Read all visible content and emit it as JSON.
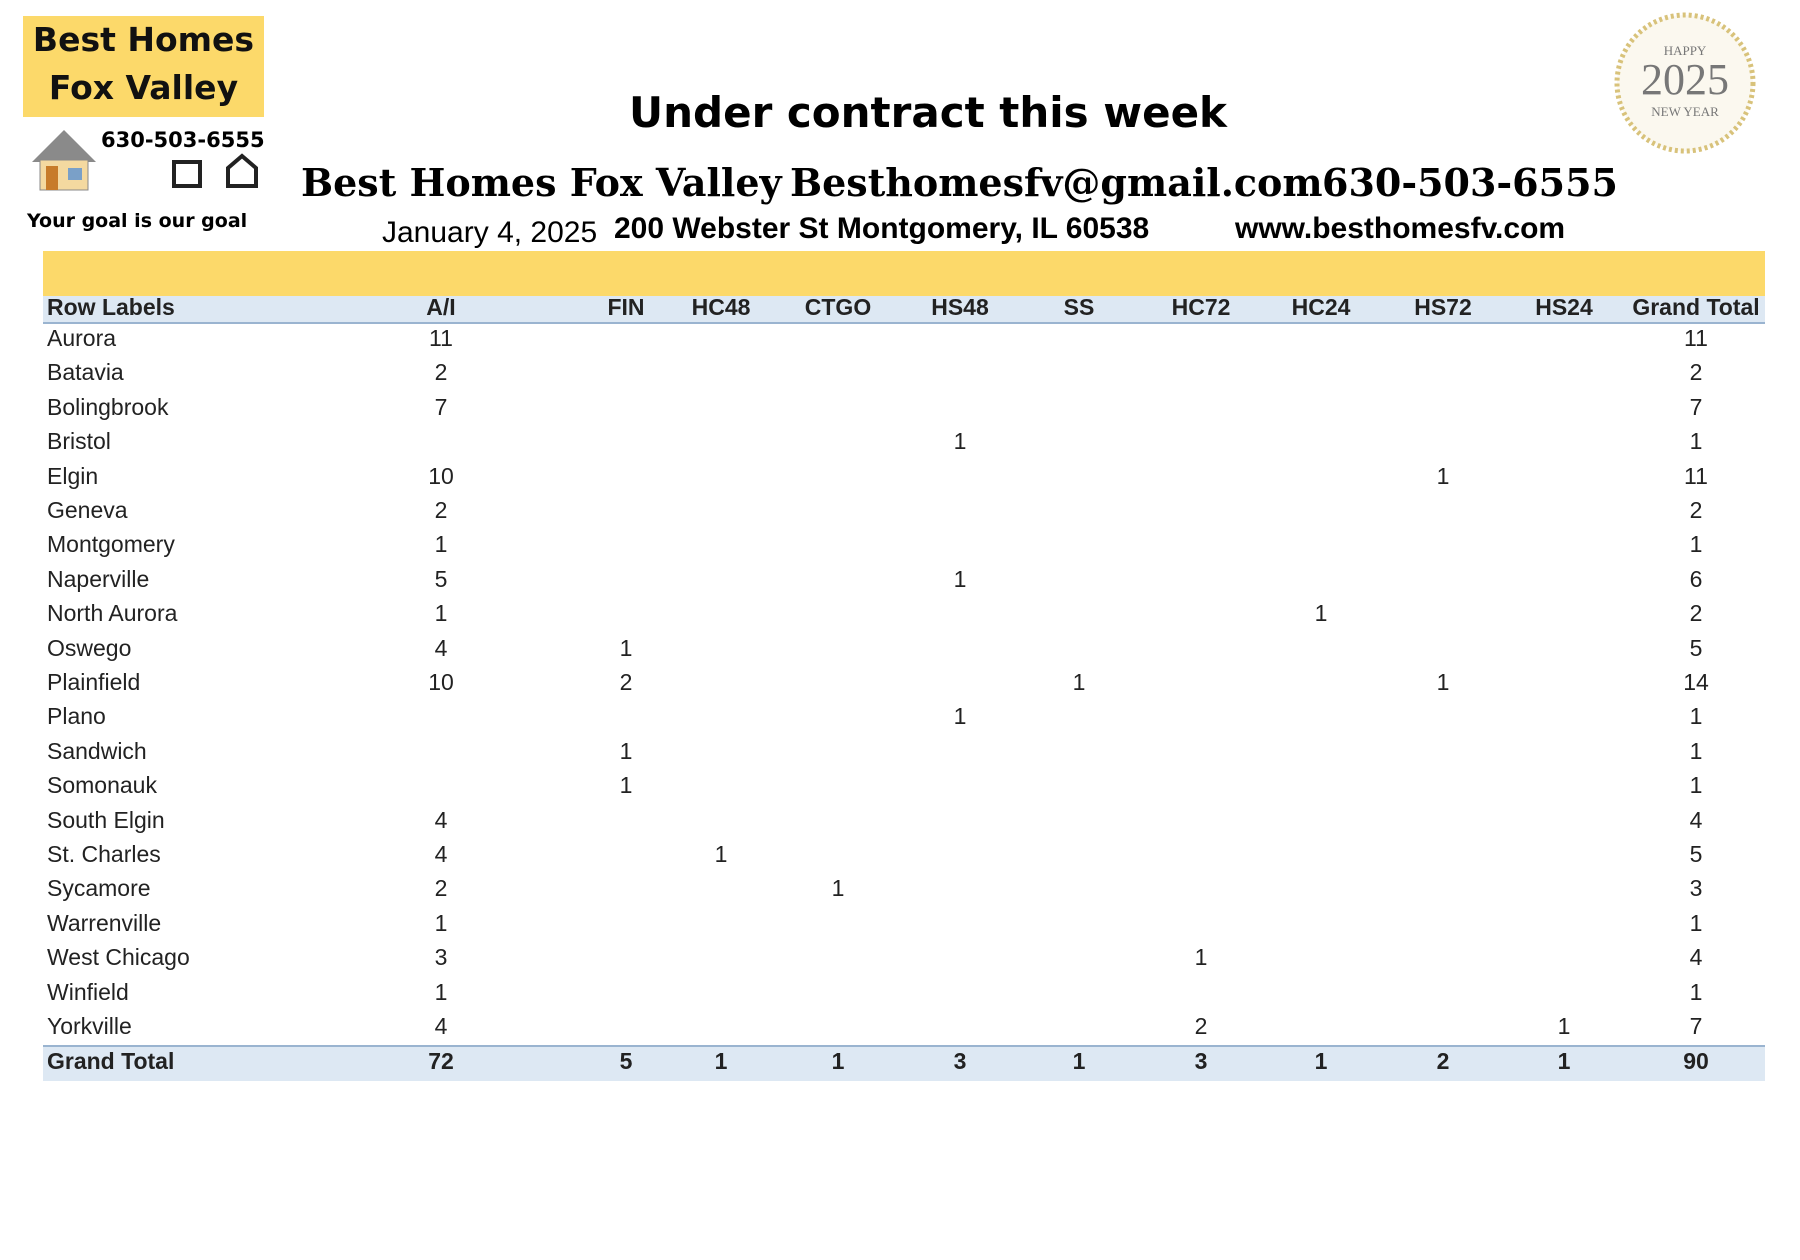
{
  "logo": {
    "line1": "Best Homes",
    "line2": "Fox Valley",
    "phone": "630-503-6555",
    "slogan": "Your goal is our goal"
  },
  "badge": {
    "top": "HAPPY",
    "year": "2025",
    "bottom": "NEW YEAR"
  },
  "header": {
    "title": "Under contract this week",
    "company": "Best Homes Fox Valley",
    "email": "Besthomesfv@gmail.com",
    "phone": "630-503-6555",
    "date": "January 4, 2025",
    "address": "200 Webster St Montgomery, IL 60538",
    "website": "www.besthomesfv.com"
  },
  "table": {
    "columns": [
      "Row Labels",
      "A/I",
      "FIN",
      "HC48",
      "CTGO",
      "HS48",
      "SS",
      "HC72",
      "HC24",
      "HS72",
      "HS24",
      "Grand Total"
    ],
    "rows": [
      [
        "Aurora",
        11,
        null,
        null,
        null,
        null,
        null,
        null,
        null,
        null,
        null,
        11
      ],
      [
        "Batavia",
        2,
        null,
        null,
        null,
        null,
        null,
        null,
        null,
        null,
        null,
        2
      ],
      [
        "Bolingbrook",
        7,
        null,
        null,
        null,
        null,
        null,
        null,
        null,
        null,
        null,
        7
      ],
      [
        "Bristol",
        null,
        null,
        null,
        null,
        1,
        null,
        null,
        null,
        null,
        null,
        1
      ],
      [
        "Elgin",
        10,
        null,
        null,
        null,
        null,
        null,
        null,
        null,
        1,
        null,
        11
      ],
      [
        "Geneva",
        2,
        null,
        null,
        null,
        null,
        null,
        null,
        null,
        null,
        null,
        2
      ],
      [
        "Montgomery",
        1,
        null,
        null,
        null,
        null,
        null,
        null,
        null,
        null,
        null,
        1
      ],
      [
        "Naperville",
        5,
        null,
        null,
        null,
        1,
        null,
        null,
        null,
        null,
        null,
        6
      ],
      [
        "North Aurora",
        1,
        null,
        null,
        null,
        null,
        null,
        null,
        1,
        null,
        null,
        2
      ],
      [
        "Oswego",
        4,
        1,
        null,
        null,
        null,
        null,
        null,
        null,
        null,
        null,
        5
      ],
      [
        "Plainfield",
        10,
        2,
        null,
        null,
        null,
        1,
        null,
        null,
        1,
        null,
        14
      ],
      [
        "Plano",
        null,
        null,
        null,
        null,
        1,
        null,
        null,
        null,
        null,
        null,
        1
      ],
      [
        "Sandwich",
        null,
        1,
        null,
        null,
        null,
        null,
        null,
        null,
        null,
        null,
        1
      ],
      [
        "Somonauk",
        null,
        1,
        null,
        null,
        null,
        null,
        null,
        null,
        null,
        null,
        1
      ],
      [
        "South Elgin",
        4,
        null,
        null,
        null,
        null,
        null,
        null,
        null,
        null,
        null,
        4
      ],
      [
        "St. Charles",
        4,
        null,
        1,
        null,
        null,
        null,
        null,
        null,
        null,
        null,
        5
      ],
      [
        "Sycamore",
        2,
        null,
        null,
        1,
        null,
        null,
        null,
        null,
        null,
        null,
        3
      ],
      [
        "Warrenville",
        1,
        null,
        null,
        null,
        null,
        null,
        null,
        null,
        null,
        null,
        1
      ],
      [
        "West Chicago",
        3,
        null,
        null,
        null,
        null,
        null,
        1,
        null,
        null,
        null,
        4
      ],
      [
        "Winfield",
        1,
        null,
        null,
        null,
        null,
        null,
        null,
        null,
        null,
        null,
        1
      ],
      [
        "Yorkville",
        4,
        null,
        null,
        null,
        null,
        null,
        2,
        null,
        null,
        1,
        7
      ]
    ],
    "total": [
      "Grand Total",
      72,
      5,
      1,
      1,
      3,
      1,
      3,
      1,
      2,
      1,
      90
    ]
  }
}
